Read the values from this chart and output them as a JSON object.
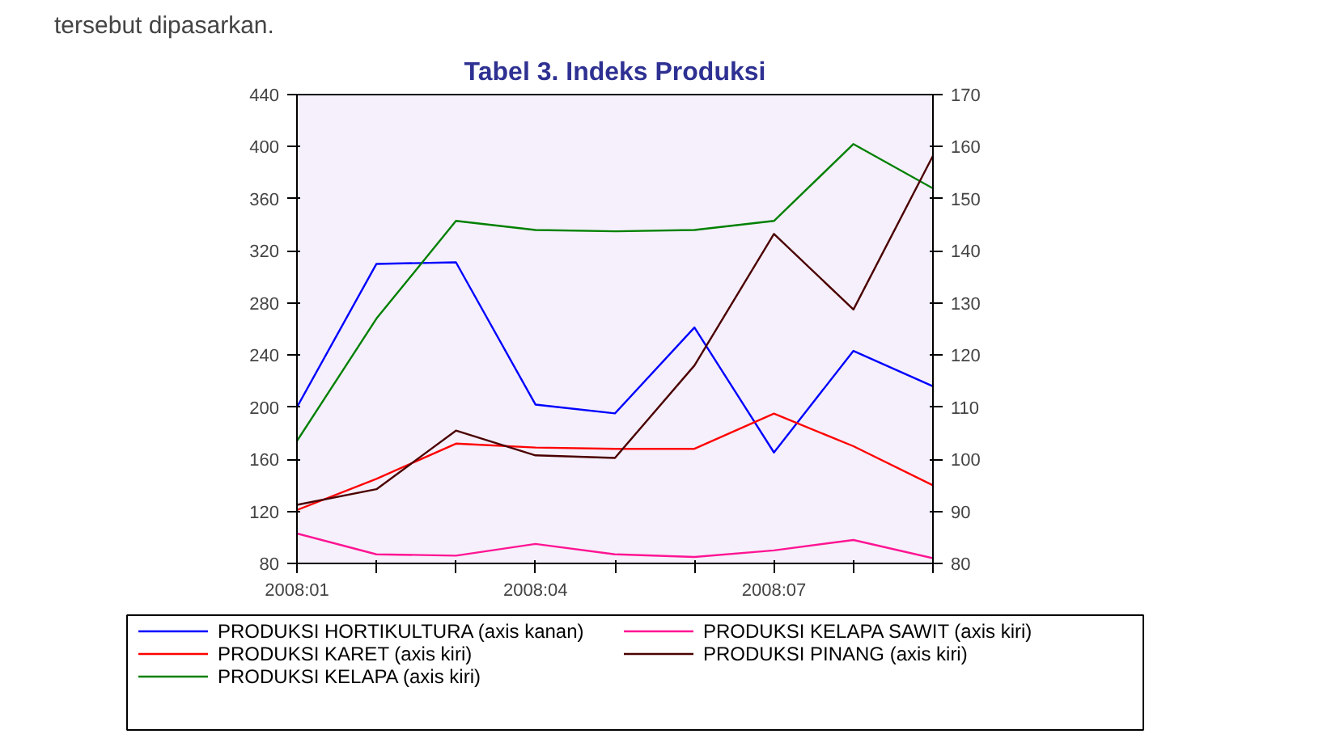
{
  "chart_data": {
    "type": "line",
    "title": "Tabel 3. Indeks Produksi",
    "annotations": [
      "tersebut dipasarkan."
    ],
    "categories": [
      "2008:01",
      null,
      null,
      "2008:04",
      null,
      null,
      "2008:07",
      null,
      null
    ],
    "ylim": [
      80,
      440
    ],
    "yticks": [
      80,
      120,
      160,
      200,
      240,
      280,
      320,
      360,
      400,
      440
    ],
    "y2lim": [
      80,
      170
    ],
    "y2ticks": [
      80,
      90,
      100,
      110,
      120,
      130,
      140,
      150,
      160,
      170
    ],
    "grid": false,
    "legend": "bottom",
    "line_style": "solid",
    "marker": "none",
    "series": [
      {
        "name": "PRODUKSI HORTIKULTURA (axis kanan)",
        "color": "#0000ff",
        "axis": "y2",
        "values": [
          110,
          137.5,
          137.8,
          110.5,
          108.8,
          125.3,
          101.3,
          120.8,
          114
        ]
      },
      {
        "name": "PRODUKSI KARET (axis kiri)",
        "color": "#ff0000",
        "values": [
          121,
          145,
          172,
          169,
          168,
          168,
          195,
          170,
          140
        ]
      },
      {
        "name": "PRODUKSI KELAPA (axis kiri)",
        "color": "#008000",
        "values": [
          174,
          268,
          343,
          336,
          335,
          336,
          343,
          402,
          368
        ]
      },
      {
        "name": "PRODUKSI KELAPA SAWIT (axis kiri)",
        "color": "#ff1493",
        "values": [
          103,
          87,
          86,
          95,
          87,
          85,
          90,
          98,
          84
        ]
      },
      {
        "name": "PRODUKSI PINANG (axis kiri)",
        "color": "#4b0000",
        "values": [
          125,
          137,
          182,
          163,
          161,
          232,
          333,
          275,
          393
        ]
      }
    ]
  }
}
